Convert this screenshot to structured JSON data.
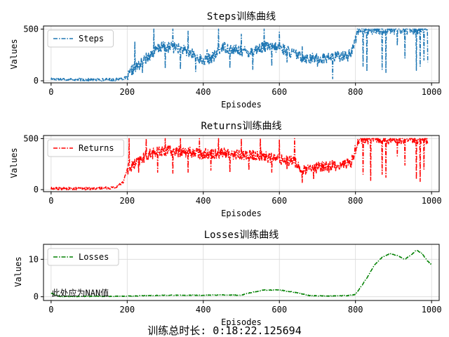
{
  "figure": {
    "footer": "训练总时长: 0:18:22.125694"
  },
  "chart_data": [
    {
      "type": "line",
      "title": "Steps训练曲线",
      "xlabel": "Episodes",
      "ylabel": "Values",
      "xlim": [
        -20,
        1020
      ],
      "ylim": [
        -20,
        530
      ],
      "xticks": [
        0,
        200,
        400,
        600,
        800,
        1000
      ],
      "yticks": [
        0,
        500
      ],
      "grid": true,
      "legend_loc": "upper-left",
      "series": [
        {
          "name": "Steps",
          "color": "#1f77b4",
          "linestyle": "dashdot",
          "keypoints": [
            [
              0,
              18
            ],
            [
              100,
              10
            ],
            [
              170,
              12
            ],
            [
              200,
              30
            ],
            [
              210,
              90
            ],
            [
              230,
              150
            ],
            [
              260,
              250
            ],
            [
              290,
              330
            ],
            [
              330,
              320
            ],
            [
              370,
              260
            ],
            [
              400,
              190
            ],
            [
              430,
              240
            ],
            [
              450,
              330
            ],
            [
              480,
              300
            ],
            [
              520,
              280
            ],
            [
              560,
              330
            ],
            [
              600,
              320
            ],
            [
              620,
              290
            ],
            [
              650,
              240
            ],
            [
              680,
              215
            ],
            [
              720,
              220
            ],
            [
              760,
              240
            ],
            [
              790,
              270
            ],
            [
              800,
              400
            ],
            [
              805,
              500
            ],
            [
              850,
              500
            ],
            [
              900,
              500
            ],
            [
              950,
              500
            ],
            [
              990,
              500
            ]
          ],
          "spikes": [
            [
              220,
              380
            ],
            [
              240,
              80
            ],
            [
              270,
              500
            ],
            [
              300,
              120
            ],
            [
              320,
              500
            ],
            [
              340,
              110
            ],
            [
              360,
              480
            ],
            [
              380,
              90
            ],
            [
              410,
              300
            ],
            [
              440,
              500
            ],
            [
              470,
              120
            ],
            [
              500,
              450
            ],
            [
              530,
              110
            ],
            [
              560,
              500
            ],
            [
              580,
              140
            ],
            [
              600,
              470
            ],
            [
              620,
              180
            ],
            [
              660,
              330
            ],
            [
              700,
              140
            ],
            [
              740,
              20
            ],
            [
              780,
              180
            ],
            [
              820,
              140
            ],
            [
              830,
              90
            ],
            [
              870,
              110
            ],
            [
              880,
              80
            ],
            [
              910,
              340
            ],
            [
              930,
              220
            ],
            [
              960,
              100
            ],
            [
              970,
              140
            ],
            [
              980,
              200
            ],
            [
              990,
              180
            ]
          ]
        }
      ]
    },
    {
      "type": "line",
      "title": "Returns训练曲线",
      "xlabel": "Episodes",
      "ylabel": "Values",
      "xlim": [
        -20,
        1020
      ],
      "ylim": [
        -20,
        530
      ],
      "xticks": [
        0,
        200,
        400,
        600,
        800,
        1000
      ],
      "yticks": [
        0,
        500
      ],
      "grid": true,
      "legend_loc": "upper-left",
      "series": [
        {
          "name": "Returns",
          "color": "#ff0000",
          "linestyle": "dashdot",
          "keypoints": [
            [
              0,
              10
            ],
            [
              100,
              10
            ],
            [
              170,
              20
            ],
            [
              190,
              80
            ],
            [
              200,
              200
            ],
            [
              220,
              250
            ],
            [
              260,
              350
            ],
            [
              300,
              380
            ],
            [
              350,
              370
            ],
            [
              400,
              350
            ],
            [
              450,
              360
            ],
            [
              500,
              340
            ],
            [
              550,
              330
            ],
            [
              600,
              300
            ],
            [
              640,
              280
            ],
            [
              660,
              180
            ],
            [
              680,
              200
            ],
            [
              720,
              230
            ],
            [
              760,
              240
            ],
            [
              790,
              270
            ],
            [
              800,
              400
            ],
            [
              810,
              500
            ],
            [
              860,
              500
            ],
            [
              900,
              500
            ],
            [
              950,
              500
            ],
            [
              990,
              500
            ]
          ],
          "spikes": [
            [
              205,
              500
            ],
            [
              230,
              170
            ],
            [
              250,
              500
            ],
            [
              280,
              170
            ],
            [
              300,
              500
            ],
            [
              320,
              160
            ],
            [
              340,
              500
            ],
            [
              360,
              170
            ],
            [
              390,
              500
            ],
            [
              420,
              190
            ],
            [
              440,
              500
            ],
            [
              470,
              170
            ],
            [
              500,
              500
            ],
            [
              520,
              190
            ],
            [
              550,
              500
            ],
            [
              580,
              170
            ],
            [
              600,
              490
            ],
            [
              620,
              200
            ],
            [
              640,
              500
            ],
            [
              660,
              70
            ],
            [
              690,
              100
            ],
            [
              730,
              170
            ],
            [
              820,
              150
            ],
            [
              840,
              90
            ],
            [
              870,
              150
            ],
            [
              880,
              120
            ],
            [
              910,
              330
            ],
            [
              930,
              240
            ],
            [
              960,
              100
            ],
            [
              970,
              80
            ],
            [
              980,
              200
            ]
          ]
        }
      ]
    },
    {
      "type": "line",
      "title": "Losses训练曲线",
      "xlabel": "Episodes",
      "ylabel": "Values",
      "xlim": [
        -20,
        1020
      ],
      "ylim": [
        -1,
        14
      ],
      "xticks": [
        0,
        200,
        400,
        600,
        800,
        1000
      ],
      "yticks": [
        0,
        10
      ],
      "grid": true,
      "legend_loc": "upper-left",
      "annotation": {
        "text": "此处应为NAN值",
        "x": 5,
        "y": 1.2
      },
      "series": [
        {
          "name": "Losses",
          "color": "#008000",
          "linestyle": "dashdot",
          "keypoints": [
            [
              0,
              1.0
            ],
            [
              20,
              0.1
            ],
            [
              100,
              0.1
            ],
            [
              200,
              0.15
            ],
            [
              250,
              0.3
            ],
            [
              300,
              0.4
            ],
            [
              400,
              0.4
            ],
            [
              450,
              0.5
            ],
            [
              500,
              0.4
            ],
            [
              520,
              1.0
            ],
            [
              560,
              1.8
            ],
            [
              600,
              1.8
            ],
            [
              640,
              1.2
            ],
            [
              680,
              0.3
            ],
            [
              720,
              0.2
            ],
            [
              780,
              0.3
            ],
            [
              800,
              0.6
            ],
            [
              810,
              2.0
            ],
            [
              830,
              5.0
            ],
            [
              850,
              8.5
            ],
            [
              870,
              10.5
            ],
            [
              890,
              11.5
            ],
            [
              910,
              11.0
            ],
            [
              930,
              10.0
            ],
            [
              950,
              11.5
            ],
            [
              960,
              12.5
            ],
            [
              975,
              11.5
            ],
            [
              990,
              9.5
            ],
            [
              1000,
              8.5
            ]
          ],
          "spikes": []
        }
      ]
    }
  ]
}
